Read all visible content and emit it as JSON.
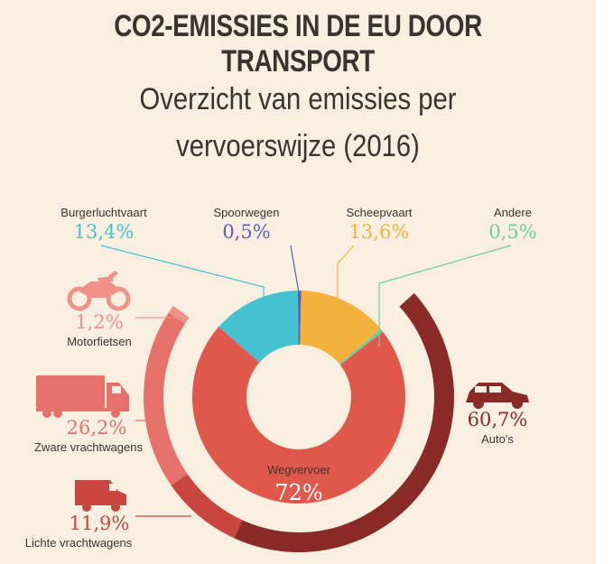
{
  "title": "CO2-EMISSIES IN DE EU DOOR TRANSPORT",
  "subtitle": "Overzicht van emissies per vervoerswijze (2016)",
  "colors": {
    "background": "#f8efe1",
    "burgerluchtvaart": "#45c2d0",
    "spoorwegen": "#5a62b8",
    "scheepvaart": "#f4b13c",
    "andere": "#6fcf9a",
    "wegvervoer": "#e0574c",
    "autos": "#8a2a26",
    "motorfietsen": "#f0928a",
    "zware_vrachtwagens": "#e6716a",
    "lichte_vrachtwagens": "#c8463e"
  },
  "chart_data": [
    {
      "type": "pie",
      "categories": [
        "Burgerluchtvaart",
        "Spoorwegen",
        "Scheepvaart",
        "Andere",
        "Wegvervoer"
      ],
      "values": [
        13.4,
        0.5,
        13.6,
        0.5,
        72
      ],
      "labels": [
        "13,4%",
        "0,5%",
        "13,6%",
        "0,5%",
        "72%"
      ]
    },
    {
      "type": "pie",
      "categories": [
        "Auto's",
        "Lichte vrachtwagens",
        "Zware vrachtwagens",
        "Motorfietsen"
      ],
      "values": [
        60.7,
        11.9,
        26.2,
        1.2
      ],
      "labels": [
        "60,7%",
        "11,9%",
        "26,2%",
        "1,2%"
      ]
    }
  ]
}
